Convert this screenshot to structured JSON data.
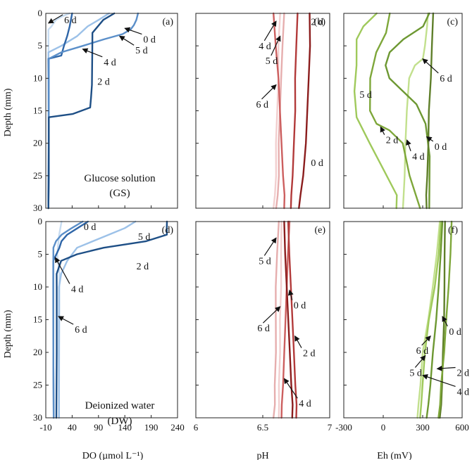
{
  "figure": {
    "y_label": "Depth (mm)",
    "columns": [
      {
        "xlabel": "DO (µmol L⁻¹)",
        "xlim": [
          -10,
          240
        ],
        "ticks": [
          "-10",
          "40",
          "90",
          "140",
          "190",
          "240"
        ]
      },
      {
        "xlabel": "pH",
        "xlim": [
          6,
          7
        ],
        "ticks": [
          "6",
          "6.5",
          "7"
        ]
      },
      {
        "xlabel": "Eh (mV)",
        "xlim": [
          -300,
          600
        ],
        "ticks": [
          "-300",
          "0",
          "300",
          "600"
        ]
      }
    ],
    "y_ticks": [
      "0",
      "5",
      "10",
      "15",
      "20",
      "25",
      "30"
    ],
    "conditions": [
      {
        "name": "Glucose solution",
        "abbr": "(GS)"
      },
      {
        "name": "Deionized water",
        "abbr": "(DW)"
      }
    ],
    "colors": {
      "DO": {
        "0 d": "#5b8fc9",
        "2 d": "#1e4f86",
        "4 d": "#2f66a8",
        "5 d": "#9cc1e8",
        "6 d": "#c7dcf1"
      },
      "pH": {
        "0 d": "#8b1d1d",
        "2 d": "#b23a3a",
        "4 d": "#cc5f5f",
        "5 d": "#e6aeae",
        "6 d": "#f2cfcf"
      },
      "Eh": {
        "0 d": "#5f7f2a",
        "2 d": "#7ea73a",
        "4 d": "#6d9832",
        "5 d": "#9fc95b",
        "6 d": "#c2e08d"
      }
    }
  },
  "chart_data": [
    {
      "type": "line",
      "panel": "(a)",
      "variable": "DO",
      "condition": "GS",
      "xlim": [
        -10,
        240
      ],
      "ylim": [
        30,
        0
      ],
      "series": [
        {
          "name": "0 d",
          "x": [
            165,
            162,
            158,
            150,
            135,
            100,
            60,
            20,
            -5,
            -5,
            -5,
            -5,
            -5,
            -5,
            -5
          ],
          "y": [
            0,
            1,
            1.8,
            2.5,
            3.2,
            4,
            5,
            6,
            7,
            10,
            15,
            20,
            25,
            28,
            30
          ]
        },
        {
          "name": "2 d",
          "x": [
            120,
            100,
            78,
            78,
            78,
            78,
            76,
            74,
            40,
            -5,
            -5,
            -5,
            -5
          ],
          "y": [
            0,
            1,
            3,
            6,
            9,
            11,
            13,
            14.5,
            15.5,
            16,
            20,
            25,
            30
          ]
        },
        {
          "name": "4 d",
          "x": [
            40,
            35,
            30,
            25,
            20,
            -5,
            -5,
            -5,
            -5,
            -5
          ],
          "y": [
            0,
            2,
            3.5,
            5,
            6.5,
            7,
            10,
            20,
            25,
            30
          ]
        },
        {
          "name": "5 d",
          "x": [
            110,
            90,
            70,
            50,
            20,
            -5,
            -5,
            -5,
            -5
          ],
          "y": [
            0,
            1,
            2,
            3.5,
            5,
            6,
            10,
            20,
            30
          ]
        },
        {
          "name": "6 d",
          "x": [
            35,
            20,
            10,
            5,
            0,
            -5,
            -5,
            -5
          ],
          "y": [
            0,
            0.5,
            1,
            1.5,
            2,
            2.5,
            10,
            30
          ]
        }
      ]
    },
    {
      "type": "line",
      "panel": "(b)",
      "variable": "pH",
      "condition": "GS",
      "xlim": [
        6,
        7
      ],
      "ylim": [
        30,
        0
      ],
      "series": [
        {
          "name": "0 d",
          "x": [
            6.85,
            6.85,
            6.84,
            6.83,
            6.82,
            6.8,
            6.78,
            6.77
          ],
          "y": [
            0,
            5,
            10,
            15,
            20,
            25,
            28,
            30
          ]
        },
        {
          "name": "2 d",
          "x": [
            6.76,
            6.75,
            6.74,
            6.74,
            6.73,
            6.72,
            6.71,
            6.71
          ],
          "y": [
            0,
            5,
            10,
            15,
            20,
            25,
            28,
            30
          ]
        },
        {
          "name": "4 d",
          "x": [
            6.58,
            6.6,
            6.62,
            6.63,
            6.64,
            6.65,
            6.66,
            6.66
          ],
          "y": [
            0,
            5,
            10,
            15,
            20,
            25,
            28,
            30
          ]
        },
        {
          "name": "5 d",
          "x": [
            6.66,
            6.65,
            6.64,
            6.63,
            6.62,
            6.62,
            6.61,
            6.6
          ],
          "y": [
            0,
            5,
            10,
            15,
            20,
            25,
            28,
            30
          ]
        },
        {
          "name": "6 d",
          "x": [
            6.63,
            6.62,
            6.62,
            6.61,
            6.6,
            6.6,
            6.59,
            6.58
          ],
          "y": [
            0,
            5,
            10,
            15,
            20,
            25,
            28,
            30
          ]
        }
      ]
    },
    {
      "type": "line",
      "panel": "(c)",
      "variable": "Eh",
      "condition": "GS",
      "xlim": [
        -300,
        600
      ],
      "ylim": [
        30,
        0
      ],
      "series": [
        {
          "name": "0 d",
          "x": [
            380,
            370,
            360,
            350,
            345,
            340,
            335,
            330,
            330
          ],
          "y": [
            0,
            5,
            10,
            15,
            18,
            20,
            25,
            28,
            30
          ]
        },
        {
          "name": "2 d",
          "x": [
            50,
            20,
            -50,
            -100,
            -100,
            -50,
            50,
            150,
            200,
            280
          ],
          "y": [
            0,
            3,
            6,
            10,
            15,
            17,
            18,
            20,
            25,
            30
          ]
        },
        {
          "name": "4 d",
          "x": [
            350,
            300,
            150,
            50,
            20,
            50,
            150,
            250,
            320,
            350,
            350
          ],
          "y": [
            0,
            2,
            4,
            6,
            8,
            10,
            12,
            14,
            17,
            22,
            30
          ]
        },
        {
          "name": "5 d",
          "x": [
            -50,
            -150,
            -200,
            -200,
            -220,
            -200,
            -100,
            0,
            100,
            100
          ],
          "y": [
            0,
            2,
            4,
            8,
            12,
            16,
            20,
            24,
            28,
            30
          ]
        },
        {
          "name": "6 d",
          "x": [
            340,
            330,
            320,
            300,
            240,
            200,
            180,
            170,
            160,
            150
          ],
          "y": [
            0,
            2,
            5,
            7,
            8,
            10,
            15,
            20,
            25,
            30
          ]
        }
      ]
    },
    {
      "type": "line",
      "panel": "(d)",
      "variable": "DO",
      "condition": "DW",
      "xlim": [
        -10,
        240
      ],
      "ylim": [
        30,
        0
      ],
      "series": [
        {
          "name": "0 d",
          "x": [
            60,
            40,
            20,
            10,
            5,
            5,
            5,
            5,
            5
          ],
          "y": [
            0,
            1,
            2,
            3,
            4,
            6,
            10,
            20,
            30
          ]
        },
        {
          "name": "2 d",
          "x": [
            220,
            220,
            220,
            180,
            100,
            50,
            20,
            10,
            10,
            10,
            10
          ],
          "y": [
            0,
            1,
            2,
            3,
            4,
            5,
            6,
            8,
            10,
            20,
            30
          ]
        },
        {
          "name": "4 d",
          "x": [
            70,
            50,
            30,
            20,
            15,
            10,
            5,
            5,
            5
          ],
          "y": [
            0,
            1,
            2,
            3,
            4,
            5,
            6,
            20,
            30
          ]
        },
        {
          "name": "5 d",
          "x": [
            160,
            140,
            110,
            80,
            50,
            30,
            20,
            15,
            15,
            15
          ],
          "y": [
            0,
            1,
            2,
            3,
            4,
            6,
            8,
            10,
            20,
            30
          ]
        },
        {
          "name": "6 d",
          "x": [
            20,
            15,
            12,
            15,
            15,
            15,
            15,
            15
          ],
          "y": [
            0,
            2,
            5,
            8,
            12,
            16,
            20,
            30
          ]
        }
      ]
    },
    {
      "type": "line",
      "panel": "(e)",
      "variable": "pH",
      "condition": "DW",
      "xlim": [
        6,
        7
      ],
      "ylim": [
        30,
        0
      ],
      "series": [
        {
          "name": "0 d",
          "x": [
            6.66,
            6.67,
            6.68,
            6.69,
            6.7,
            6.71,
            6.72,
            6.72
          ],
          "y": [
            0,
            5,
            10,
            15,
            20,
            25,
            28,
            30
          ]
        },
        {
          "name": "2 d",
          "x": [
            6.69,
            6.7,
            6.71,
            6.72,
            6.73,
            6.74,
            6.75,
            6.75
          ],
          "y": [
            0,
            5,
            10,
            15,
            20,
            25,
            28,
            30
          ]
        },
        {
          "name": "4 d",
          "x": [
            6.7,
            6.69,
            6.68,
            6.67,
            6.66,
            6.65,
            6.64,
            6.64
          ],
          "y": [
            0,
            5,
            10,
            15,
            20,
            25,
            28,
            30
          ]
        },
        {
          "name": "5 d",
          "x": [
            6.62,
            6.61,
            6.6,
            6.6,
            6.6,
            6.59,
            6.59,
            6.58
          ],
          "y": [
            0,
            5,
            10,
            15,
            20,
            25,
            28,
            30
          ]
        },
        {
          "name": "6 d",
          "x": [
            6.64,
            6.64,
            6.64,
            6.63,
            6.63,
            6.62,
            6.62,
            6.62
          ],
          "y": [
            0,
            5,
            10,
            15,
            20,
            25,
            28,
            30
          ]
        }
      ]
    },
    {
      "type": "line",
      "panel": "(f)",
      "variable": "Eh",
      "condition": "DW",
      "xlim": [
        -300,
        600
      ],
      "ylim": [
        30,
        0
      ],
      "series": [
        {
          "name": "0 d",
          "x": [
            470,
            470,
            465,
            460,
            455,
            450,
            440,
            430
          ],
          "y": [
            0,
            5,
            10,
            15,
            20,
            25,
            28,
            30
          ]
        },
        {
          "name": "2 d",
          "x": [
            520,
            510,
            500,
            480,
            460,
            440,
            430,
            420
          ],
          "y": [
            0,
            5,
            10,
            15,
            20,
            25,
            28,
            30
          ]
        },
        {
          "name": "4 d",
          "x": [
            450,
            440,
            420,
            400,
            380,
            360,
            340,
            330
          ],
          "y": [
            0,
            5,
            10,
            15,
            20,
            25,
            28,
            30
          ]
        },
        {
          "name": "5 d",
          "x": [
            440,
            420,
            390,
            350,
            320,
            300,
            290,
            280
          ],
          "y": [
            0,
            5,
            10,
            15,
            20,
            25,
            28,
            30
          ]
        },
        {
          "name": "6 d",
          "x": [
            430,
            410,
            380,
            340,
            300,
            280,
            270,
            260
          ],
          "y": [
            0,
            5,
            10,
            15,
            20,
            25,
            28,
            30
          ]
        }
      ]
    }
  ],
  "annotations": [
    {
      "panel": "(a)",
      "text": "6 d",
      "at": [
        -5,
        1.5
      ],
      "label": [
        25,
        1.5
      ]
    },
    {
      "panel": "(a)",
      "text": "0 d",
      "at": [
        140,
        2.3
      ],
      "label": [
        175,
        4.5
      ]
    },
    {
      "panel": "(a)",
      "text": "5 d",
      "at": [
        130,
        3.5
      ],
      "label": [
        160,
        6.2
      ]
    },
    {
      "panel": "(a)",
      "text": "4 d",
      "at": [
        60,
        5.5
      ],
      "label": [
        100,
        8
      ]
    },
    {
      "panel": "(a)",
      "text": "2 d",
      "at": null,
      "label": [
        88,
        11
      ]
    },
    {
      "panel": "(b)",
      "text": "2 d",
      "at": null,
      "label": [
        6.86,
        1.8
      ]
    },
    {
      "panel": "(b)",
      "text": "4 d",
      "at": [
        6.6,
        1.2
      ],
      "label": [
        6.47,
        5.5
      ]
    },
    {
      "panel": "(b)",
      "text": "5 d",
      "at": [
        6.63,
        3.5
      ],
      "label": [
        6.52,
        7.8
      ]
    },
    {
      "panel": "(b)",
      "text": "6 d",
      "at": [
        6.6,
        11
      ],
      "label": [
        6.45,
        14.5
      ]
    },
    {
      "panel": "(b)",
      "text": "0 d",
      "at": null,
      "label": [
        6.86,
        23.5
      ]
    },
    {
      "panel": "(c)",
      "text": "6 d",
      "at": [
        300,
        7
      ],
      "label": [
        430,
        10.5
      ]
    },
    {
      "panel": "(c)",
      "text": "5 d",
      "at": null,
      "label": [
        -180,
        13
      ]
    },
    {
      "panel": "(c)",
      "text": "2 d",
      "at": [
        -20,
        17.5
      ],
      "label": [
        20,
        20
      ]
    },
    {
      "panel": "(c)",
      "text": "4 d",
      "at": [
        180,
        19.5
      ],
      "label": [
        220,
        22.5
      ]
    },
    {
      "panel": "(c)",
      "text": "0 d",
      "at": [
        330,
        19
      ],
      "label": [
        390,
        21
      ]
    },
    {
      "panel": "(d)",
      "text": "0 d",
      "at": null,
      "label": [
        62,
        1.3
      ]
    },
    {
      "panel": "(d)",
      "text": "5 d",
      "at": null,
      "label": [
        165,
        2.8
      ]
    },
    {
      "panel": "(d)",
      "text": "2 d",
      "at": null,
      "label": [
        162,
        7.3
      ]
    },
    {
      "panel": "(d)",
      "text": "4 d",
      "at": [
        8,
        5.5
      ],
      "label": [
        38,
        10.8
      ]
    },
    {
      "panel": "(d)",
      "text": "6 d",
      "at": [
        14,
        14.5
      ],
      "label": [
        45,
        17
      ]
    },
    {
      "panel": "(e)",
      "text": "5 d",
      "at": [
        6.6,
        2.5
      ],
      "label": [
        6.47,
        6.5
      ]
    },
    {
      "panel": "(e)",
      "text": "0 d",
      "at": [
        6.7,
        10.5
      ],
      "label": [
        6.73,
        13.3
      ]
    },
    {
      "panel": "(e)",
      "text": "6 d",
      "at": [
        6.63,
        13
      ],
      "label": [
        6.46,
        16.8
      ]
    },
    {
      "panel": "(e)",
      "text": "2 d",
      "at": [
        6.74,
        17.5
      ],
      "label": [
        6.8,
        20.6
      ]
    },
    {
      "panel": "(e)",
      "text": "4 d",
      "at": [
        6.66,
        24
      ],
      "label": [
        6.77,
        28.3
      ]
    },
    {
      "panel": "(f)",
      "text": "0 d",
      "at": [
        450,
        14.5
      ],
      "label": [
        500,
        17.3
      ]
    },
    {
      "panel": "(f)",
      "text": "6 d",
      "at": [
        360,
        17.5
      ],
      "label": [
        250,
        20.2
      ]
    },
    {
      "panel": "(f)",
      "text": "5 d",
      "at": [
        320,
        20.5
      ],
      "label": [
        200,
        23.6
      ]
    },
    {
      "panel": "(f)",
      "text": "2 d",
      "at": [
        410,
        22.5
      ],
      "label": [
        560,
        23.6
      ]
    },
    {
      "panel": "(f)",
      "text": "4 d",
      "at": [
        300,
        23.5
      ],
      "label": [
        560,
        26.5
      ]
    }
  ]
}
